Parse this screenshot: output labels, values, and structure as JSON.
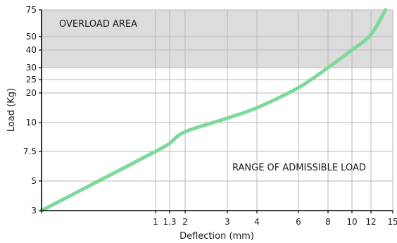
{
  "chart_data": {
    "type": "line",
    "xlabel": "Deflection (mm)",
    "ylabel": "Load (Kg)",
    "x_ticks": [
      {
        "value": 0,
        "label": ""
      },
      {
        "value": 1,
        "label": "1"
      },
      {
        "value": 1.3,
        "label": "1.3"
      },
      {
        "value": 2,
        "label": "2"
      },
      {
        "value": 3,
        "label": "3"
      },
      {
        "value": 4,
        "label": "4"
      },
      {
        "value": 6,
        "label": "6"
      },
      {
        "value": 8,
        "label": "8"
      },
      {
        "value": 10,
        "label": "10"
      },
      {
        "value": 12,
        "label": "12"
      },
      {
        "value": 15,
        "label": "15"
      }
    ],
    "y_ticks": [
      {
        "value": 3,
        "label": "3"
      },
      {
        "value": 5,
        "label": "5"
      },
      {
        "value": 7.5,
        "label": "7.5"
      },
      {
        "value": 10,
        "label": "10"
      },
      {
        "value": 20,
        "label": "20"
      },
      {
        "value": 25,
        "label": "25"
      },
      {
        "value": 30,
        "label": "30"
      },
      {
        "value": 40,
        "label": "40"
      },
      {
        "value": 50,
        "label": "50"
      },
      {
        "value": 75,
        "label": "75"
      }
    ],
    "xlim": [
      0,
      15
    ],
    "ylim": [
      3,
      75
    ],
    "grid": true,
    "series": [
      {
        "color": "#7dd99a",
        "points": [
          {
            "x": 0,
            "y": 3
          },
          {
            "x": 0.5,
            "y": 5
          },
          {
            "x": 1,
            "y": 7.5
          },
          {
            "x": 1.3,
            "y": 8.2
          },
          {
            "x": 2,
            "y": 9.2
          },
          {
            "x": 3,
            "y": 11.5
          },
          {
            "x": 4,
            "y": 15
          },
          {
            "x": 6,
            "y": 22
          },
          {
            "x": 8,
            "y": 30
          },
          {
            "x": 10,
            "y": 40
          },
          {
            "x": 12,
            "y": 52
          },
          {
            "x": 14,
            "y": 75
          }
        ]
      }
    ],
    "regions": [
      {
        "name": "overload",
        "label": "OVERLOAD AREA",
        "y_from": 30,
        "y_to": 75,
        "color": "#dcdcdc"
      },
      {
        "name": "admissible",
        "label": "RANGE OF ADMISSIBLE LOAD",
        "y_from": 3,
        "y_to": 30,
        "color": "#ffffff"
      }
    ],
    "colors": {
      "grid": "#b9b9b9",
      "axis": "#000000",
      "overload_fill": "#dcdcdc",
      "curve": "#7dd99a"
    }
  }
}
